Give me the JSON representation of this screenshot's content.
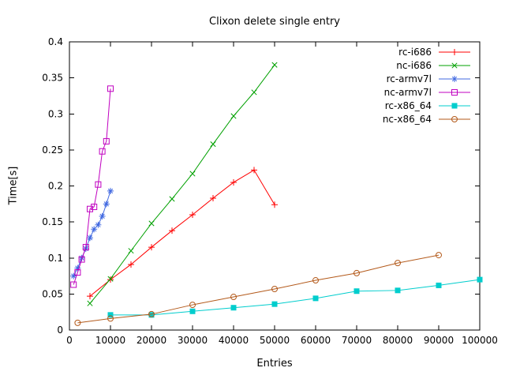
{
  "chart_data": {
    "type": "line",
    "title": "Clixon delete single entry",
    "xlabel": "Entries",
    "ylabel": "Time[s]",
    "xlim": [
      0,
      100000
    ],
    "ylim": [
      0,
      0.4
    ],
    "grid": false,
    "legend_position": "top-right-inside",
    "background_color": "#ffffff",
    "axis_color": "#000000",
    "xticks": [
      [
        0,
        "0"
      ],
      [
        10000,
        "10000"
      ],
      [
        20000,
        "20000"
      ],
      [
        30000,
        "30000"
      ],
      [
        40000,
        "40000"
      ],
      [
        50000,
        "50000"
      ],
      [
        60000,
        "60000"
      ],
      [
        70000,
        "70000"
      ],
      [
        80000,
        "80000"
      ],
      [
        90000,
        "90000"
      ],
      [
        100000,
        "100000"
      ]
    ],
    "yticks": [
      [
        0,
        "0"
      ],
      [
        0.05,
        "0.05"
      ],
      [
        0.1,
        "0.1"
      ],
      [
        0.15,
        "0.15"
      ],
      [
        0.2,
        "0.2"
      ],
      [
        0.25,
        "0.25"
      ],
      [
        0.3,
        "0.3"
      ],
      [
        0.35,
        "0.35"
      ],
      [
        0.4,
        "0.4"
      ]
    ],
    "series": [
      {
        "name": "rc-i686",
        "color": "#ff0000",
        "marker": "plus",
        "points": [
          [
            5000,
            0.047
          ],
          [
            10000,
            0.07
          ],
          [
            15000,
            0.091
          ],
          [
            20000,
            0.115
          ],
          [
            25000,
            0.138
          ],
          [
            30000,
            0.16
          ],
          [
            35000,
            0.183
          ],
          [
            40000,
            0.205
          ],
          [
            45000,
            0.222
          ],
          [
            50000,
            0.174
          ]
        ]
      },
      {
        "name": "nc-i686",
        "color": "#00a000",
        "marker": "cross",
        "points": [
          [
            5000,
            0.037
          ],
          [
            10000,
            0.071
          ],
          [
            15000,
            0.11
          ],
          [
            20000,
            0.148
          ],
          [
            25000,
            0.182
          ],
          [
            30000,
            0.217
          ],
          [
            35000,
            0.258
          ],
          [
            40000,
            0.297
          ],
          [
            45000,
            0.33
          ],
          [
            50000,
            0.368
          ]
        ]
      },
      {
        "name": "rc-armv7l",
        "color": "#4169e1",
        "marker": "asterisk",
        "points": [
          [
            1000,
            0.075
          ],
          [
            2000,
            0.086
          ],
          [
            3000,
            0.1
          ],
          [
            4000,
            0.113
          ],
          [
            5000,
            0.128
          ],
          [
            6000,
            0.14
          ],
          [
            7000,
            0.146
          ],
          [
            8000,
            0.158
          ],
          [
            9000,
            0.175
          ],
          [
            10000,
            0.193
          ]
        ]
      },
      {
        "name": "nc-armv7l",
        "color": "#c000c0",
        "marker": "square-open",
        "points": [
          [
            1000,
            0.063
          ],
          [
            2000,
            0.08
          ],
          [
            3000,
            0.098
          ],
          [
            4000,
            0.115
          ],
          [
            5000,
            0.168
          ],
          [
            6000,
            0.171
          ],
          [
            7000,
            0.202
          ],
          [
            8000,
            0.248
          ],
          [
            9000,
            0.262
          ],
          [
            10000,
            0.335
          ]
        ]
      },
      {
        "name": "rc-x86_64",
        "color": "#00cdcd",
        "marker": "square-filled",
        "points": [
          [
            10000,
            0.021
          ],
          [
            20000,
            0.021
          ],
          [
            30000,
            0.026
          ],
          [
            40000,
            0.031
          ],
          [
            50000,
            0.036
          ],
          [
            60000,
            0.044
          ],
          [
            70000,
            0.054
          ],
          [
            80000,
            0.055
          ],
          [
            90000,
            0.062
          ],
          [
            100000,
            0.07
          ]
        ]
      },
      {
        "name": "nc-x86_64",
        "color": "#b3591a",
        "marker": "circle-open",
        "points": [
          [
            2000,
            0.01
          ],
          [
            10000,
            0.016
          ],
          [
            20000,
            0.022
          ],
          [
            30000,
            0.035
          ],
          [
            40000,
            0.046
          ],
          [
            50000,
            0.057
          ],
          [
            60000,
            0.069
          ],
          [
            70000,
            0.079
          ],
          [
            80000,
            0.093
          ],
          [
            90000,
            0.104
          ]
        ]
      }
    ]
  }
}
